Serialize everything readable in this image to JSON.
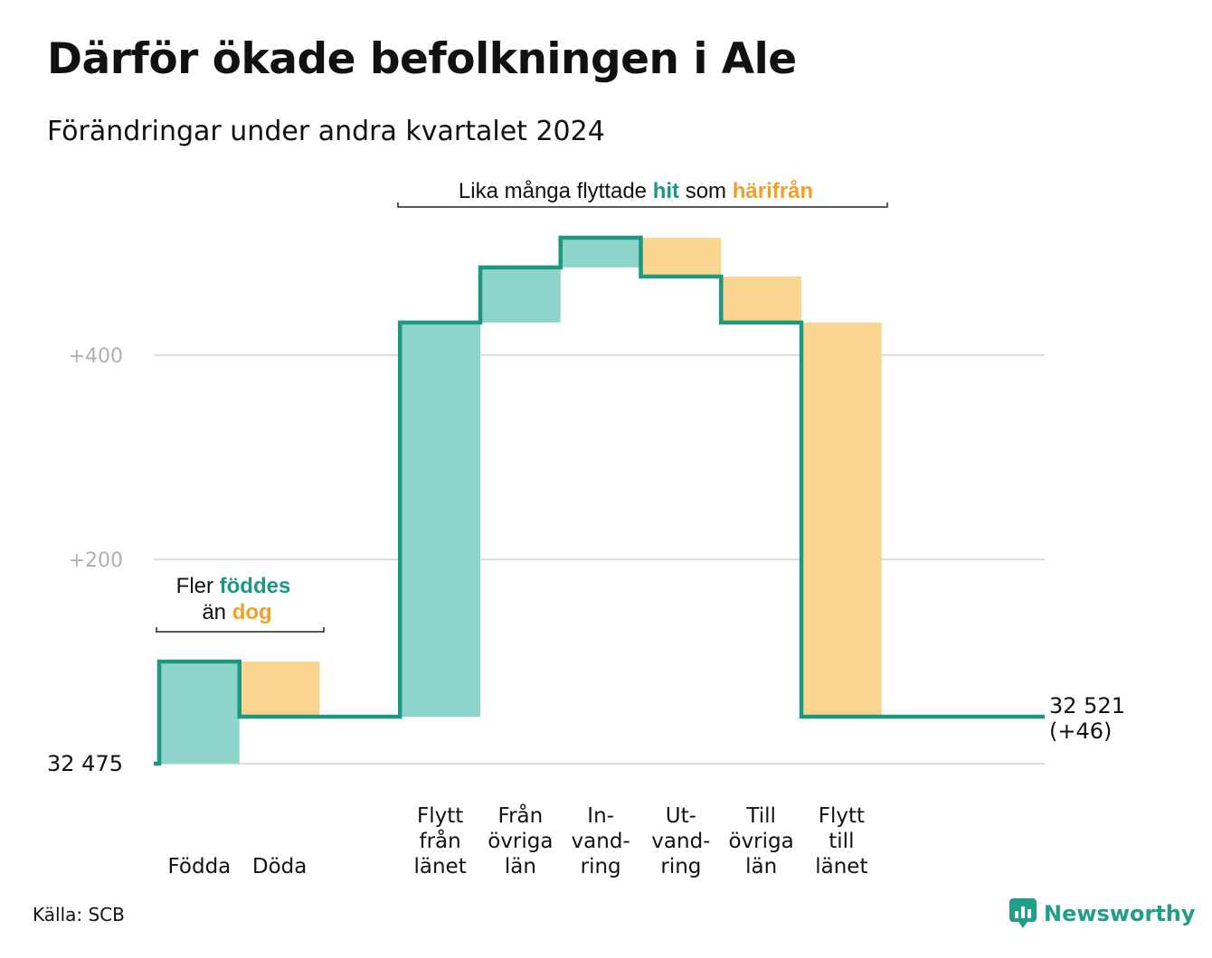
{
  "title": "Därför ökade befolkningen i Ale",
  "subtitle": "Förändringar under andra kvartalet 2024",
  "source": "Källa: SCB",
  "brand": "Newsworthy",
  "colors": {
    "line": "#1a9882",
    "increase": "#8dd5cb",
    "decrease": "#fad58f",
    "accent_teal": "#1a9882",
    "accent_orange": "#f0a02a",
    "grid": "#dddddd",
    "tick": "#b0b0b0"
  },
  "annotations": {
    "births": {
      "line1_prefix": "Fler ",
      "line1_hl": "föddes",
      "line2_prefix": "än ",
      "line2_hl": "dog"
    },
    "moves": {
      "prefix": "Lika många flyttade ",
      "hl1": "hit",
      "middle": " som ",
      "hl2": "härifrån"
    }
  },
  "chart_data": {
    "type": "waterfall",
    "title": "Därför ökade befolkningen i Ale",
    "subtitle": "Förändringar under andra kvartalet 2024",
    "start_value": 32475,
    "start_label": "32  475",
    "end_value": 32521,
    "end_label_line1": "32 521",
    "end_label_line2": "(+46)",
    "ylim": [
      0,
      520
    ],
    "yticks": [
      {
        "value": 0,
        "label": ""
      },
      {
        "value": 200,
        "label": "+200"
      },
      {
        "value": 400,
        "label": "+400"
      }
    ],
    "grid": true,
    "steps": [
      {
        "label_lines": [
          "Födda"
        ],
        "change": 100
      },
      {
        "label_lines": [
          "Döda"
        ],
        "change": -54
      },
      {
        "label_lines": [],
        "change": 0
      },
      {
        "label_lines": [
          "Flytt",
          "från",
          "länet"
        ],
        "change": 386
      },
      {
        "label_lines": [
          "Från",
          "övriga",
          "län"
        ],
        "change": 54
      },
      {
        "label_lines": [
          "In-",
          "vand-",
          "ring"
        ],
        "change": 29
      },
      {
        "label_lines": [
          "Ut-",
          "vand-",
          "ring"
        ],
        "change": -38
      },
      {
        "label_lines": [
          "Till",
          "övriga",
          "län"
        ],
        "change": -45
      },
      {
        "label_lines": [
          "Flytt",
          "till",
          "länet"
        ],
        "change": -386
      },
      {
        "label_lines": [],
        "change": 0
      }
    ]
  }
}
